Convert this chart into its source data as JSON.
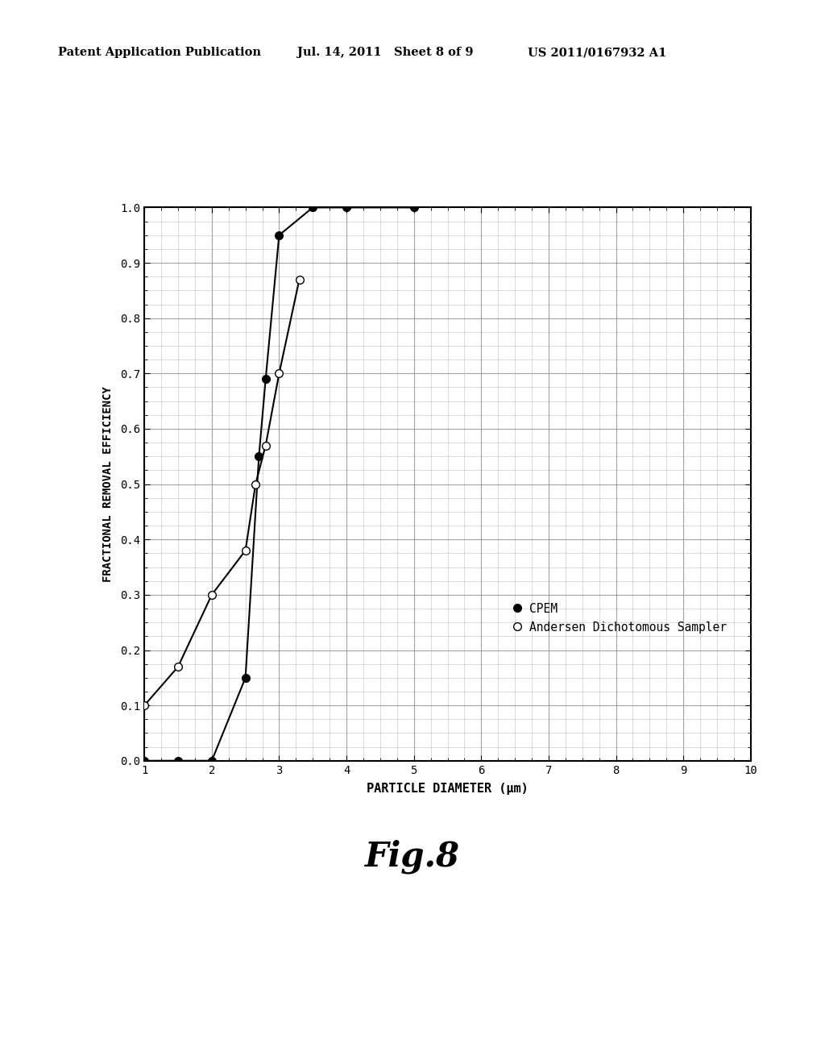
{
  "cpem_x": [
    1.0,
    1.5,
    2.0,
    2.5,
    2.7,
    2.8,
    3.0,
    3.5,
    4.0,
    5.0
  ],
  "cpem_y": [
    0.0,
    0.0,
    0.0,
    0.15,
    0.55,
    0.69,
    0.95,
    1.0,
    1.0,
    1.0
  ],
  "ads_x": [
    1.0,
    1.5,
    2.0,
    2.5,
    2.65,
    2.8,
    3.0,
    3.3
  ],
  "ads_y": [
    0.1,
    0.17,
    0.3,
    0.38,
    0.5,
    0.57,
    0.7,
    0.87
  ],
  "xlabel": "PARTICLE DIAMETER (μm)",
  "ylabel": "FRACTIONAL REMOVAL EFFICIENCY",
  "fig_label": "Fig.8",
  "header_left": "Patent Application Publication",
  "header_mid": "Jul. 14, 2011   Sheet 8 of 9",
  "header_right": "US 2011/0167932 A1",
  "legend_cpem": "CPEM",
  "legend_ads": "Andersen Dichotomous Sampler",
  "xlim": [
    1,
    10
  ],
  "ylim": [
    0.0,
    1.0
  ],
  "yticks": [
    0.0,
    0.1,
    0.2,
    0.3,
    0.4,
    0.5,
    0.6,
    0.7,
    0.8,
    0.9,
    1.0
  ],
  "xticks": [
    1,
    2,
    3,
    4,
    5,
    6,
    7,
    8,
    9,
    10
  ],
  "background_color": "#ffffff",
  "line_color": "#000000",
  "grid_color": "#999999"
}
